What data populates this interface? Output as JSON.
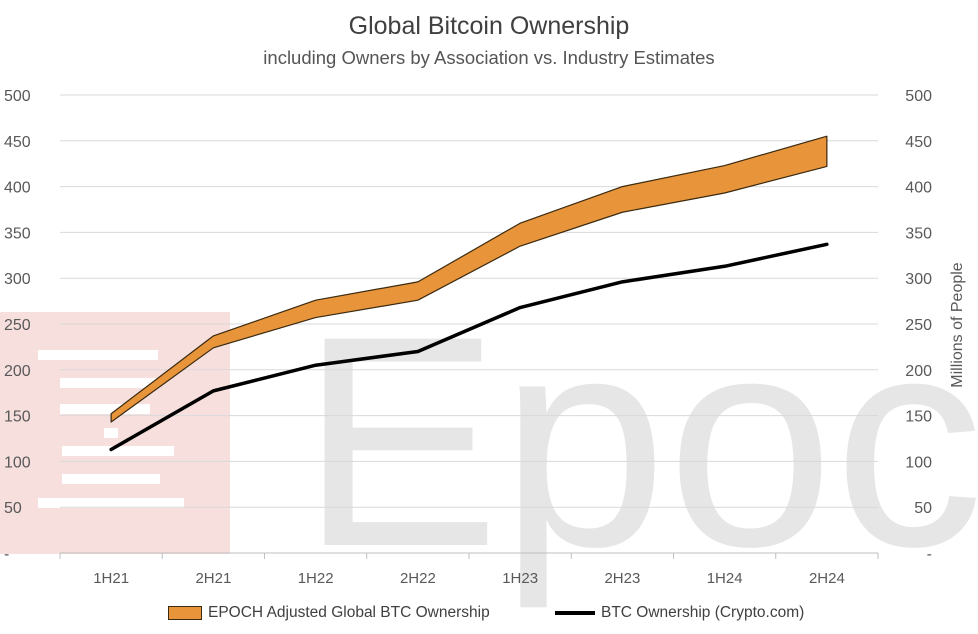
{
  "colors": {
    "band_fill": "#E8943A",
    "band_stroke": "#3a2a10",
    "line": "#000000",
    "grid": "#d9d9d9",
    "text": "#595959",
    "watermark_text": "#e6e6e6",
    "watermark_logo": "#f6dfdd"
  },
  "watermark": {
    "text": "Epoch"
  },
  "chart_data": {
    "type": "area",
    "title": "Global Bitcoin Ownership",
    "subtitle": "including Owners by Association vs. Industry Estimates",
    "ylabel_right": "Millions of People",
    "categories": [
      "1H21",
      "2H21",
      "1H22",
      "2H22",
      "1H23",
      "2H23",
      "1H24",
      "2H24"
    ],
    "ylim": [
      0,
      500
    ],
    "yticks": [
      "-",
      "50",
      "100",
      "150",
      "200",
      "250",
      "300",
      "350",
      "400",
      "450",
      "500"
    ],
    "grid": true,
    "legend_position": "bottom",
    "series": [
      {
        "name": "EPOCH Adjusted Global BTC Ownership",
        "type": "band",
        "low": [
          143,
          224,
          257,
          276,
          335,
          372,
          393,
          422
        ],
        "high": [
          152,
          237,
          276,
          296,
          360,
          400,
          423,
          455
        ]
      },
      {
        "name": "BTC Ownership (Crypto.com)",
        "type": "line",
        "values": [
          113,
          177,
          205,
          220,
          268,
          296,
          313,
          337
        ]
      }
    ]
  }
}
